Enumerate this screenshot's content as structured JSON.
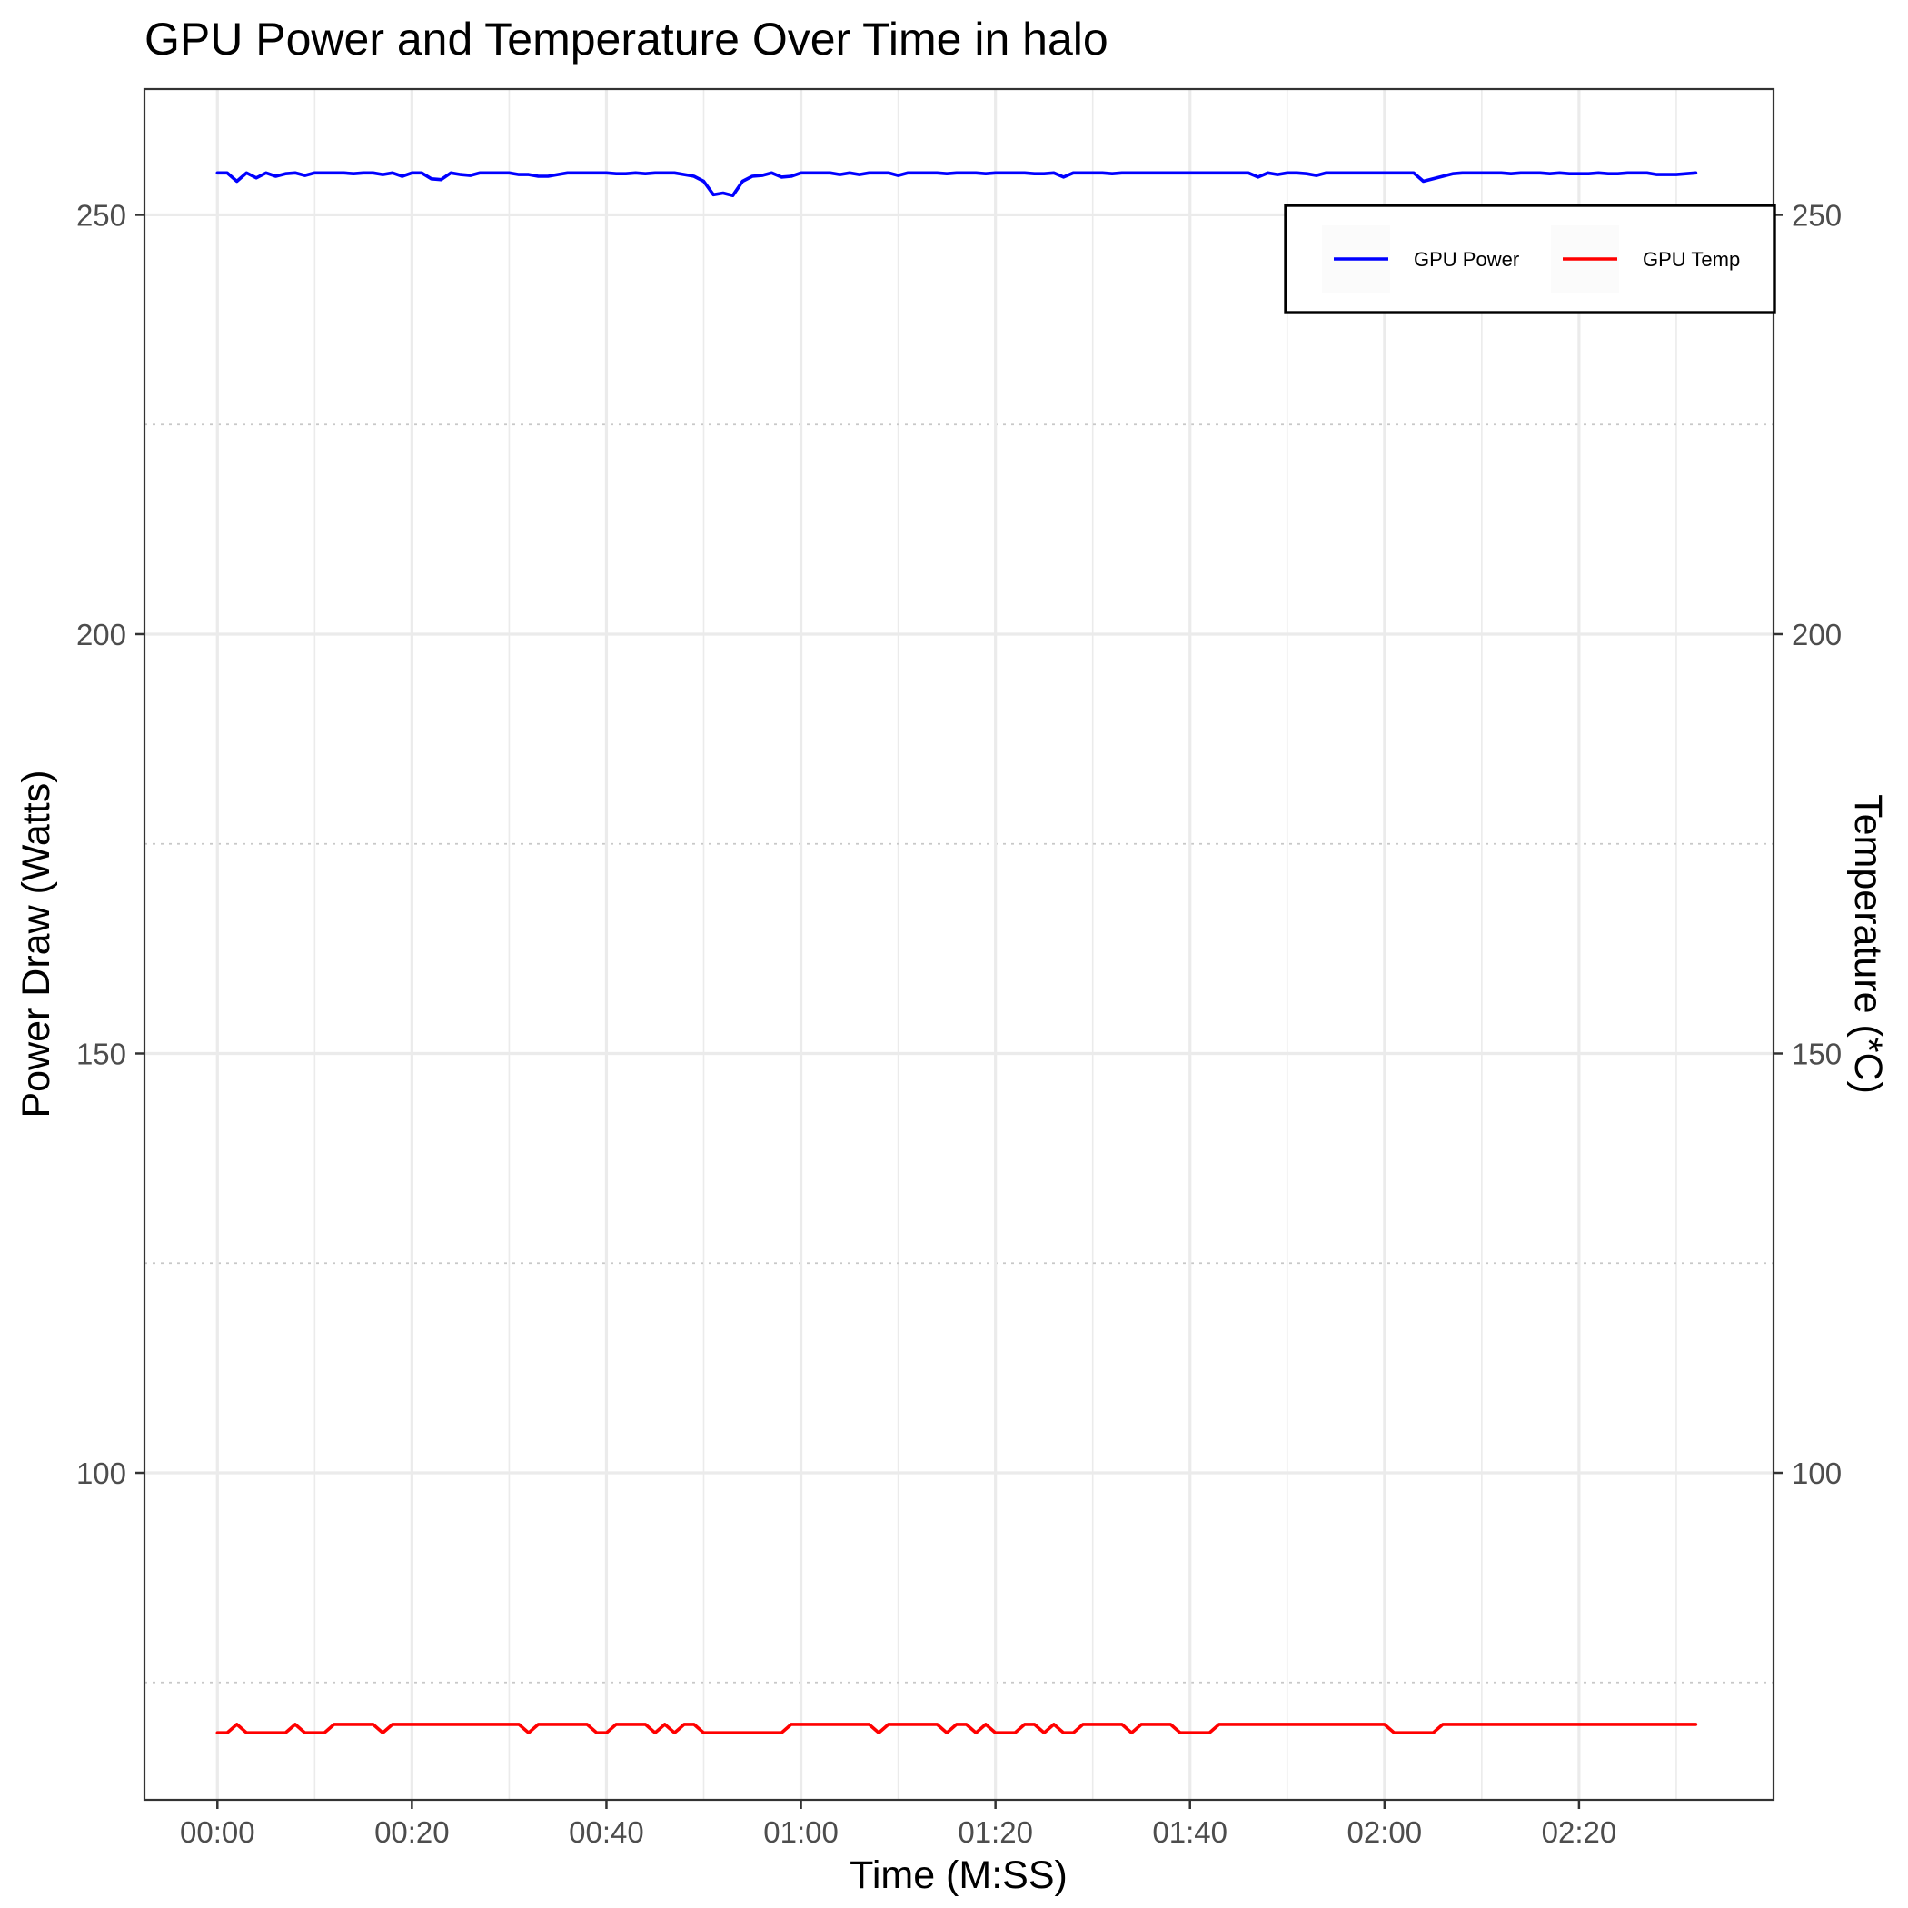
{
  "chart_data": {
    "type": "line",
    "title": "GPU Power and Temperature Over Time in halo",
    "xlabel": "Time (M:SS)",
    "ylabel": "Power Draw (Watts)",
    "y2label": "Temperature (*C)",
    "x_unit": "seconds",
    "xlim": [
      -7.5,
      160
    ],
    "ylim": [
      61,
      265
    ],
    "x_ticks": [
      0,
      20,
      40,
      60,
      80,
      100,
      120,
      140
    ],
    "x_tick_labels": [
      "00:00",
      "00:20",
      "00:40",
      "01:00",
      "01:20",
      "01:40",
      "02:00",
      "02:20"
    ],
    "x_minor_ticks": [
      10,
      30,
      50,
      70,
      90,
      110,
      130,
      150
    ],
    "y_ticks": [
      100,
      150,
      200,
      250
    ],
    "y_tick_labels": [
      "100",
      "150",
      "200",
      "250"
    ],
    "y_minor_ticks": [
      75,
      125,
      175,
      225
    ],
    "y2_ticks": [
      100,
      150,
      200,
      250
    ],
    "y2_tick_labels": [
      "100",
      "150",
      "200",
      "250"
    ],
    "grid": true,
    "legend_position": "top-right",
    "series": [
      {
        "name": "GPU Power",
        "color": "#0000ff",
        "axis": "left",
        "points": [
          [
            0,
            255.0
          ],
          [
            1,
            255.0
          ],
          [
            2,
            254.0
          ],
          [
            3,
            255.0
          ],
          [
            4,
            254.4
          ],
          [
            5,
            255.0
          ],
          [
            6,
            254.6
          ],
          [
            7,
            254.9
          ],
          [
            8,
            255.0
          ],
          [
            9,
            254.7
          ],
          [
            10,
            255.0
          ],
          [
            11,
            255.0
          ],
          [
            12,
            255.0
          ],
          [
            13,
            255.0
          ],
          [
            14,
            254.9
          ],
          [
            15,
            255.0
          ],
          [
            16,
            255.0
          ],
          [
            17,
            254.8
          ],
          [
            18,
            255.0
          ],
          [
            19,
            254.6
          ],
          [
            20,
            255.0
          ],
          [
            21,
            255.0
          ],
          [
            22,
            254.3
          ],
          [
            23,
            254.2
          ],
          [
            24,
            255.0
          ],
          [
            25,
            254.8
          ],
          [
            26,
            254.7
          ],
          [
            27,
            255.0
          ],
          [
            28,
            255.0
          ],
          [
            29,
            255.0
          ],
          [
            30,
            255.0
          ],
          [
            31,
            254.8
          ],
          [
            32,
            254.8
          ],
          [
            33,
            254.6
          ],
          [
            34,
            254.6
          ],
          [
            35,
            254.8
          ],
          [
            36,
            255.0
          ],
          [
            37,
            255.0
          ],
          [
            38,
            255.0
          ],
          [
            39,
            255.0
          ],
          [
            40,
            255.0
          ],
          [
            41,
            254.9
          ],
          [
            42,
            254.9
          ],
          [
            43,
            255.0
          ],
          [
            44,
            254.9
          ],
          [
            45,
            255.0
          ],
          [
            46,
            255.0
          ],
          [
            47,
            255.0
          ],
          [
            48,
            254.8
          ],
          [
            49,
            254.6
          ],
          [
            50,
            254.0
          ],
          [
            51,
            252.4
          ],
          [
            52,
            252.6
          ],
          [
            53,
            252.3
          ],
          [
            54,
            254.0
          ],
          [
            55,
            254.6
          ],
          [
            56,
            254.7
          ],
          [
            57,
            255.0
          ],
          [
            58,
            254.5
          ],
          [
            59,
            254.6
          ],
          [
            60,
            255.0
          ],
          [
            61,
            255.0
          ],
          [
            62,
            255.0
          ],
          [
            63,
            255.0
          ],
          [
            64,
            254.8
          ],
          [
            65,
            255.0
          ],
          [
            66,
            254.8
          ],
          [
            67,
            255.0
          ],
          [
            68,
            255.0
          ],
          [
            69,
            255.0
          ],
          [
            70,
            254.7
          ],
          [
            71,
            255.0
          ],
          [
            72,
            255.0
          ],
          [
            73,
            255.0
          ],
          [
            74,
            255.0
          ],
          [
            75,
            254.9
          ],
          [
            76,
            255.0
          ],
          [
            77,
            255.0
          ],
          [
            78,
            255.0
          ],
          [
            79,
            254.9
          ],
          [
            80,
            255.0
          ],
          [
            81,
            255.0
          ],
          [
            82,
            255.0
          ],
          [
            83,
            255.0
          ],
          [
            84,
            254.9
          ],
          [
            85,
            254.9
          ],
          [
            86,
            255.0
          ],
          [
            87,
            254.5
          ],
          [
            88,
            255.0
          ],
          [
            89,
            255.0
          ],
          [
            90,
            255.0
          ],
          [
            91,
            255.0
          ],
          [
            92,
            254.9
          ],
          [
            93,
            255.0
          ],
          [
            94,
            255.0
          ],
          [
            95,
            255.0
          ],
          [
            96,
            255.0
          ],
          [
            97,
            255.0
          ],
          [
            98,
            255.0
          ],
          [
            99,
            255.0
          ],
          [
            100,
            255.0
          ],
          [
            101,
            255.0
          ],
          [
            102,
            255.0
          ],
          [
            103,
            255.0
          ],
          [
            104,
            255.0
          ],
          [
            105,
            255.0
          ],
          [
            106,
            255.0
          ],
          [
            107,
            254.5
          ],
          [
            108,
            255.0
          ],
          [
            109,
            254.8
          ],
          [
            110,
            255.0
          ],
          [
            111,
            255.0
          ],
          [
            112,
            254.9
          ],
          [
            113,
            254.7
          ],
          [
            114,
            255.0
          ],
          [
            115,
            255.0
          ],
          [
            116,
            255.0
          ],
          [
            117,
            255.0
          ],
          [
            118,
            255.0
          ],
          [
            119,
            255.0
          ],
          [
            120,
            255.0
          ],
          [
            121,
            255.0
          ],
          [
            122,
            255.0
          ],
          [
            123,
            255.0
          ],
          [
            124,
            254.0
          ],
          [
            125,
            254.3
          ],
          [
            126,
            254.6
          ],
          [
            127,
            254.9
          ],
          [
            128,
            255.0
          ],
          [
            129,
            255.0
          ],
          [
            130,
            255.0
          ],
          [
            131,
            255.0
          ],
          [
            132,
            255.0
          ],
          [
            133,
            254.9
          ],
          [
            134,
            255.0
          ],
          [
            135,
            255.0
          ],
          [
            136,
            255.0
          ],
          [
            137,
            254.9
          ],
          [
            138,
            255.0
          ],
          [
            139,
            254.9
          ],
          [
            140,
            254.9
          ],
          [
            141,
            254.9
          ],
          [
            142,
            255.0
          ],
          [
            143,
            254.9
          ],
          [
            144,
            254.9
          ],
          [
            145,
            255.0
          ],
          [
            146,
            255.0
          ],
          [
            147,
            255.0
          ],
          [
            148,
            254.8
          ],
          [
            149,
            254.8
          ],
          [
            150,
            254.8
          ],
          [
            151,
            254.9
          ],
          [
            152,
            255.0
          ]
        ]
      },
      {
        "name": "GPU Temp",
        "color": "#ff0000",
        "axis": "right",
        "points": [
          [
            0,
            69.0
          ],
          [
            1,
            69.0
          ],
          [
            2,
            70.0
          ],
          [
            3,
            69.0
          ],
          [
            4,
            69.0
          ],
          [
            5,
            69.0
          ],
          [
            6,
            69.0
          ],
          [
            7,
            69.0
          ],
          [
            8,
            70.0
          ],
          [
            9,
            69.0
          ],
          [
            10,
            69.0
          ],
          [
            11,
            69.0
          ],
          [
            12,
            70.0
          ],
          [
            13,
            70.0
          ],
          [
            14,
            70.0
          ],
          [
            15,
            70.0
          ],
          [
            16,
            70.0
          ],
          [
            17,
            69.0
          ],
          [
            18,
            70.0
          ],
          [
            19,
            70.0
          ],
          [
            20,
            70.0
          ],
          [
            21,
            70.0
          ],
          [
            22,
            70.0
          ],
          [
            23,
            70.0
          ],
          [
            24,
            70.0
          ],
          [
            25,
            70.0
          ],
          [
            26,
            70.0
          ],
          [
            27,
            70.0
          ],
          [
            28,
            70.0
          ],
          [
            29,
            70.0
          ],
          [
            30,
            70.0
          ],
          [
            31,
            70.0
          ],
          [
            32,
            69.0
          ],
          [
            33,
            70.0
          ],
          [
            34,
            70.0
          ],
          [
            35,
            70.0
          ],
          [
            36,
            70.0
          ],
          [
            37,
            70.0
          ],
          [
            38,
            70.0
          ],
          [
            39,
            69.0
          ],
          [
            40,
            69.0
          ],
          [
            41,
            70.0
          ],
          [
            42,
            70.0
          ],
          [
            43,
            70.0
          ],
          [
            44,
            70.0
          ],
          [
            45,
            69.0
          ],
          [
            46,
            70.0
          ],
          [
            47,
            69.0
          ],
          [
            48,
            70.0
          ],
          [
            49,
            70.0
          ],
          [
            50,
            69.0
          ],
          [
            51,
            69.0
          ],
          [
            52,
            69.0
          ],
          [
            53,
            69.0
          ],
          [
            54,
            69.0
          ],
          [
            55,
            69.0
          ],
          [
            56,
            69.0
          ],
          [
            57,
            69.0
          ],
          [
            58,
            69.0
          ],
          [
            59,
            70.0
          ],
          [
            60,
            70.0
          ],
          [
            61,
            70.0
          ],
          [
            62,
            70.0
          ],
          [
            63,
            70.0
          ],
          [
            64,
            70.0
          ],
          [
            65,
            70.0
          ],
          [
            66,
            70.0
          ],
          [
            67,
            70.0
          ],
          [
            68,
            69.0
          ],
          [
            69,
            70.0
          ],
          [
            70,
            70.0
          ],
          [
            71,
            70.0
          ],
          [
            72,
            70.0
          ],
          [
            73,
            70.0
          ],
          [
            74,
            70.0
          ],
          [
            75,
            69.0
          ],
          [
            76,
            70.0
          ],
          [
            77,
            70.0
          ],
          [
            78,
            69.0
          ],
          [
            79,
            70.0
          ],
          [
            80,
            69.0
          ],
          [
            81,
            69.0
          ],
          [
            82,
            69.0
          ],
          [
            83,
            70.0
          ],
          [
            84,
            70.0
          ],
          [
            85,
            69.0
          ],
          [
            86,
            70.0
          ],
          [
            87,
            69.0
          ],
          [
            88,
            69.0
          ],
          [
            89,
            70.0
          ],
          [
            90,
            70.0
          ],
          [
            91,
            70.0
          ],
          [
            92,
            70.0
          ],
          [
            93,
            70.0
          ],
          [
            94,
            69.0
          ],
          [
            95,
            70.0
          ],
          [
            96,
            70.0
          ],
          [
            97,
            70.0
          ],
          [
            98,
            70.0
          ],
          [
            99,
            69.0
          ],
          [
            100,
            69.0
          ],
          [
            101,
            69.0
          ],
          [
            102,
            69.0
          ],
          [
            103,
            70.0
          ],
          [
            104,
            70.0
          ],
          [
            105,
            70.0
          ],
          [
            106,
            70.0
          ],
          [
            107,
            70.0
          ],
          [
            108,
            70.0
          ],
          [
            109,
            70.0
          ],
          [
            110,
            70.0
          ],
          [
            111,
            70.0
          ],
          [
            112,
            70.0
          ],
          [
            113,
            70.0
          ],
          [
            114,
            70.0
          ],
          [
            115,
            70.0
          ],
          [
            116,
            70.0
          ],
          [
            117,
            70.0
          ],
          [
            118,
            70.0
          ],
          [
            119,
            70.0
          ],
          [
            120,
            70.0
          ],
          [
            121,
            69.0
          ],
          [
            122,
            69.0
          ],
          [
            123,
            69.0
          ],
          [
            124,
            69.0
          ],
          [
            125,
            69.0
          ],
          [
            126,
            70.0
          ],
          [
            127,
            70.0
          ],
          [
            128,
            70.0
          ],
          [
            129,
            70.0
          ],
          [
            130,
            70.0
          ],
          [
            131,
            70.0
          ],
          [
            132,
            70.0
          ],
          [
            133,
            70.0
          ],
          [
            134,
            70.0
          ],
          [
            135,
            70.0
          ],
          [
            136,
            70.0
          ],
          [
            137,
            70.0
          ],
          [
            138,
            70.0
          ],
          [
            139,
            70.0
          ],
          [
            140,
            70.0
          ],
          [
            141,
            70.0
          ],
          [
            142,
            70.0
          ],
          [
            143,
            70.0
          ],
          [
            144,
            70.0
          ],
          [
            145,
            70.0
          ],
          [
            146,
            70.0
          ],
          [
            147,
            70.0
          ],
          [
            148,
            70.0
          ],
          [
            149,
            70.0
          ],
          [
            150,
            70.0
          ],
          [
            151,
            70.0
          ],
          [
            152,
            70.0
          ]
        ]
      }
    ]
  }
}
